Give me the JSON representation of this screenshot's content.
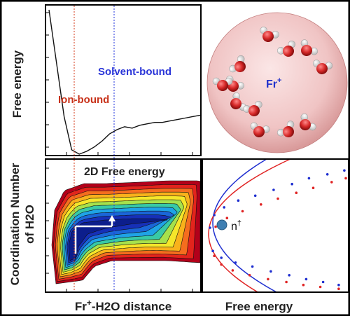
{
  "labels": {
    "free_energy_axis": "Free energy",
    "solvent_bound": "Solvent-bound",
    "ion_bound": "Ion-bound",
    "ion": "Fr",
    "ion_charge": "+",
    "coordination_line1": "Coordination Number",
    "coordination_line2": "of H2O",
    "panel_2d_title": "2D Free energy",
    "x_axis_left_pre": "Fr",
    "x_axis_left_sup": "+",
    "x_axis_left_post": "-H2O distance",
    "x_axis_right": "Free energy",
    "marker_label": "n",
    "marker_sup": "†"
  },
  "colors": {
    "frame": "#000000",
    "ion_bound_line": "#d43a1a",
    "solvent_bound_line": "#2233dd",
    "blue_series": "#1f2fd0",
    "red_series": "#e02424",
    "marker": "#3f7fb2",
    "oxygen": "#d62828",
    "hydrogen": "#f2f2f2"
  },
  "chart_data": [
    {
      "type": "line",
      "panel": "free-energy-profile",
      "title": "",
      "xlabel": "",
      "ylabel": "Free energy",
      "annotations": [
        "Ion-bound",
        "Solvent-bound"
      ],
      "x": [
        0.0,
        0.05,
        0.1,
        0.15,
        0.2,
        0.25,
        0.3,
        0.35,
        0.4,
        0.45,
        0.5,
        0.55,
        0.6,
        0.65,
        0.7,
        0.75,
        0.8,
        0.85,
        0.9,
        0.95,
        1.0
      ],
      "values": [
        1.0,
        0.63,
        0.26,
        0.03,
        0.0,
        0.02,
        0.05,
        0.09,
        0.14,
        0.17,
        0.19,
        0.18,
        0.2,
        0.21,
        0.22,
        0.22,
        0.23,
        0.24,
        0.25,
        0.26,
        0.27
      ]
    },
    {
      "type": "heatmap",
      "panel": "2d-free-energy",
      "title": "2D Free energy",
      "xlabel": "Fr+-H2O distance",
      "ylabel": "Coordination Number of H2O"
    },
    {
      "type": "scatter",
      "panel": "free-energy-vs-coordination",
      "title": "",
      "xlabel": "Free energy",
      "ylabel": "",
      "annotations": [
        "n†"
      ],
      "series": [
        {
          "x": [
            0.02,
            0.05,
            0.12,
            0.22,
            0.34,
            0.47,
            0.6,
            0.72,
            0.85,
            0.97,
            0.04,
            0.1,
            0.2,
            0.32,
            0.45,
            0.58,
            0.7,
            0.82,
            0.93
          ],
          "y": [
            0.65,
            0.78,
            0.86,
            0.93,
            0.98,
            1.04,
            1.1,
            1.16,
            1.2,
            1.24,
            0.41,
            0.34,
            0.29,
            0.25,
            0.2,
            0.16,
            0.12,
            0.09,
            0.06
          ]
        },
        {
          "x": [
            0.06,
            0.14,
            0.25,
            0.38,
            0.5,
            0.63,
            0.75,
            0.88,
            0.98,
            0.05,
            0.1,
            0.18,
            0.3,
            0.43,
            0.56,
            0.68,
            0.8,
            0.93
          ],
          "y": [
            0.66,
            0.75,
            0.82,
            0.89,
            0.95,
            1.01,
            1.06,
            1.12,
            1.16,
            0.36,
            0.27,
            0.21,
            0.16,
            0.12,
            0.09,
            0.06,
            0.04,
            0.02
          ]
        }
      ]
    }
  ]
}
